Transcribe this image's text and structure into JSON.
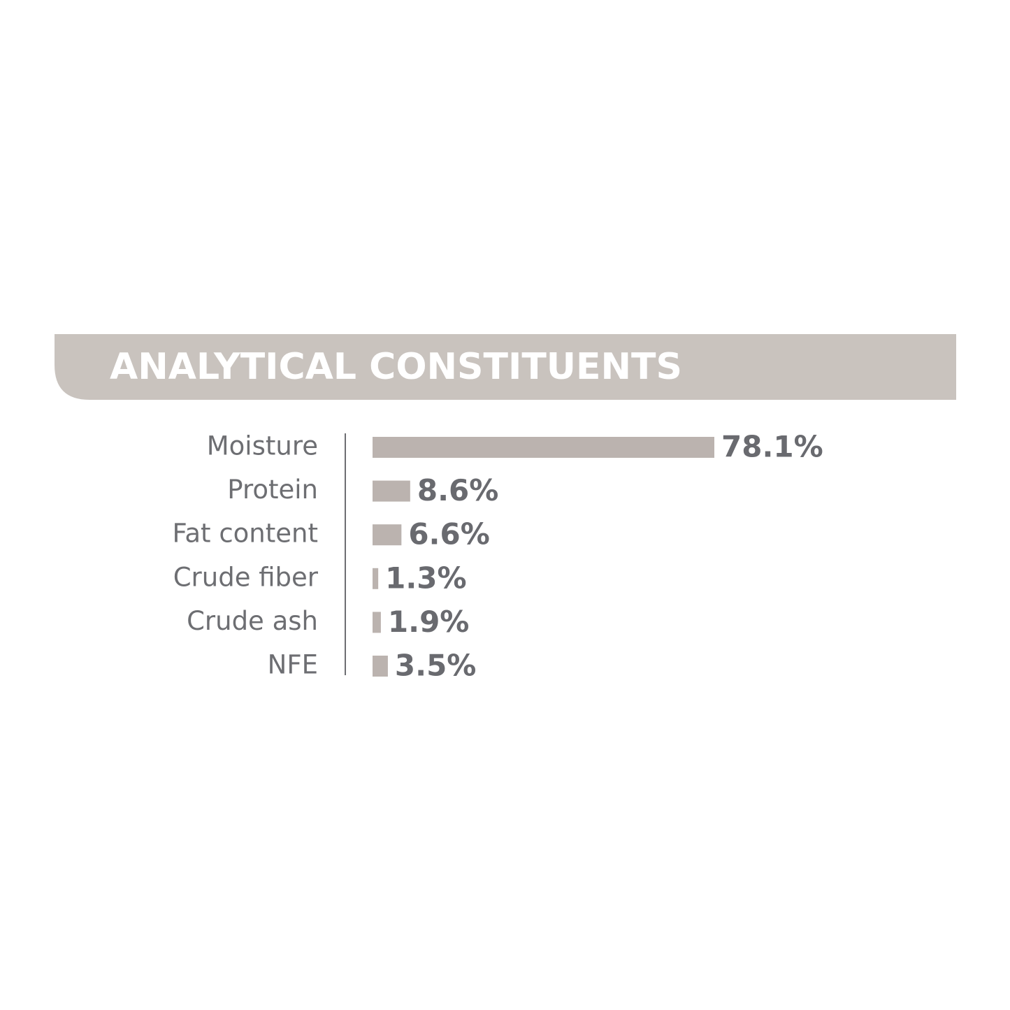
{
  "chart_data": {
    "type": "bar",
    "title": "ANALYTICAL CONSTITUENTS",
    "categories": [
      "Moisture",
      "Protein",
      "Fat content",
      "Crude fiber",
      "Crude ash",
      "NFE"
    ],
    "values": [
      78.1,
      8.6,
      6.6,
      1.3,
      1.9,
      3.5
    ],
    "value_labels": [
      "78.1%",
      "8.6%",
      "6.6%",
      "1.3%",
      "1.9%",
      "3.5%"
    ],
    "color": "#bbb3af"
  }
}
